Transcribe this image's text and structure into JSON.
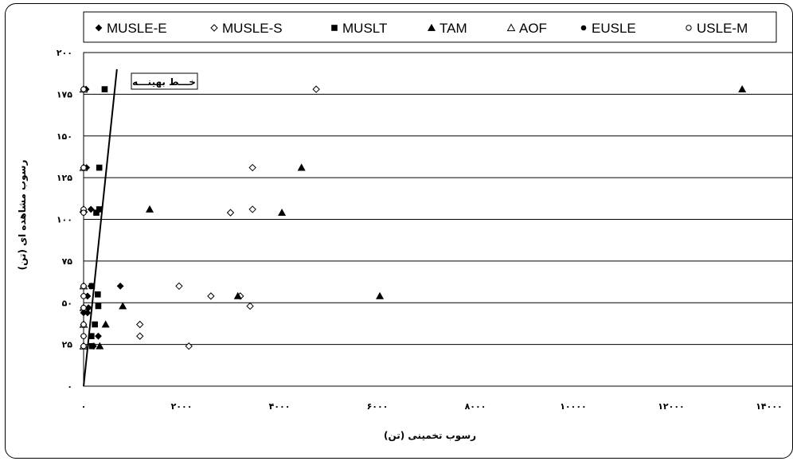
{
  "chart_data": {
    "type": "scatter",
    "title": "",
    "xlabel": "رسوب تخمینی (تن)",
    "ylabel": "رسوب مشاهده ای (تن)",
    "xlim": [
      0,
      14000
    ],
    "ylim": [
      0,
      200
    ],
    "x_ticks": [
      0,
      2000,
      4000,
      6000,
      8000,
      10000,
      12000,
      14000
    ],
    "x_tick_labels": [
      "۰",
      "۲۰۰۰",
      "۴۰۰۰",
      "۶۰۰۰",
      "۸۰۰۰",
      "۱۰۰۰۰",
      "۱۲۰۰۰",
      "۱۴۰۰۰"
    ],
    "y_ticks": [
      0,
      25,
      50,
      75,
      100,
      125,
      150,
      175,
      200
    ],
    "y_tick_labels": [
      "۰",
      "۲۵",
      "۵۰",
      "۷۵",
      "۱۰۰",
      "۱۲۵",
      "۱۵۰",
      "۱۷۵",
      "۲۰۰"
    ],
    "grid": "horizontal",
    "legend_position": "top",
    "series": [
      {
        "name": "MUSLE-E",
        "marker": "diamond-filled",
        "points": [
          [
            0,
            178
          ],
          [
            50,
            178
          ],
          [
            0,
            131
          ],
          [
            60,
            131
          ],
          [
            0,
            106
          ],
          [
            150,
            106
          ],
          [
            0,
            104
          ],
          [
            0,
            60
          ],
          [
            150,
            60
          ],
          [
            750,
            60
          ],
          [
            0,
            54
          ],
          [
            80,
            54
          ],
          [
            0,
            47
          ],
          [
            100,
            47
          ],
          [
            0,
            44
          ],
          [
            80,
            44
          ],
          [
            0,
            37
          ],
          [
            0,
            30
          ],
          [
            300,
            30
          ],
          [
            0,
            24
          ],
          [
            200,
            24
          ]
        ]
      },
      {
        "name": "MUSLE-S",
        "marker": "diamond-open",
        "points": [
          [
            4750,
            178
          ],
          [
            3450,
            131
          ],
          [
            3450,
            106
          ],
          [
            3000,
            104
          ],
          [
            1950,
            60
          ],
          [
            2600,
            54
          ],
          [
            3200,
            54
          ],
          [
            3400,
            48
          ],
          [
            1150,
            37
          ],
          [
            1150,
            30
          ],
          [
            2150,
            24
          ]
        ]
      },
      {
        "name": "MUSLT",
        "marker": "square-filled",
        "points": [
          [
            430,
            178
          ],
          [
            320,
            131
          ],
          [
            320,
            106
          ],
          [
            260,
            104
          ],
          [
            170,
            60
          ],
          [
            290,
            55
          ],
          [
            300,
            48
          ],
          [
            230,
            37
          ],
          [
            160,
            30
          ],
          [
            170,
            24
          ]
        ]
      },
      {
        "name": "TAM",
        "marker": "triangle-filled",
        "points": [
          [
            13450,
            178
          ],
          [
            4450,
            131
          ],
          [
            1350,
            106
          ],
          [
            4050,
            104
          ],
          [
            6050,
            54
          ],
          [
            3150,
            54
          ],
          [
            800,
            48
          ],
          [
            450,
            37
          ],
          [
            330,
            24
          ]
        ]
      },
      {
        "name": "AOF",
        "marker": "triangle-open",
        "points": [
          [
            0,
            178
          ],
          [
            0,
            131
          ],
          [
            0,
            106
          ],
          [
            0,
            60
          ],
          [
            0,
            47
          ],
          [
            0,
            37
          ],
          [
            0,
            24
          ]
        ]
      },
      {
        "name": "EUSLE",
        "marker": "circle-filled",
        "points": [
          [
            0,
            178
          ],
          [
            0,
            131
          ],
          [
            0,
            106
          ],
          [
            0,
            104
          ],
          [
            0,
            54
          ],
          [
            0,
            30
          ],
          [
            0,
            24
          ]
        ]
      },
      {
        "name": "USLE-M",
        "marker": "circle-open",
        "points": [
          [
            0,
            178
          ],
          [
            0,
            131
          ],
          [
            0,
            106
          ],
          [
            0,
            104
          ],
          [
            0,
            60
          ],
          [
            0,
            54
          ],
          [
            0,
            47
          ],
          [
            0,
            37
          ],
          [
            0,
            30
          ],
          [
            0,
            24
          ]
        ]
      }
    ],
    "best_fit_line": {
      "from": [
        0,
        0
      ],
      "to": [
        680,
        190
      ]
    },
    "annotations": [
      {
        "text": "خـــط بهینـــه",
        "boxed": true
      }
    ]
  }
}
